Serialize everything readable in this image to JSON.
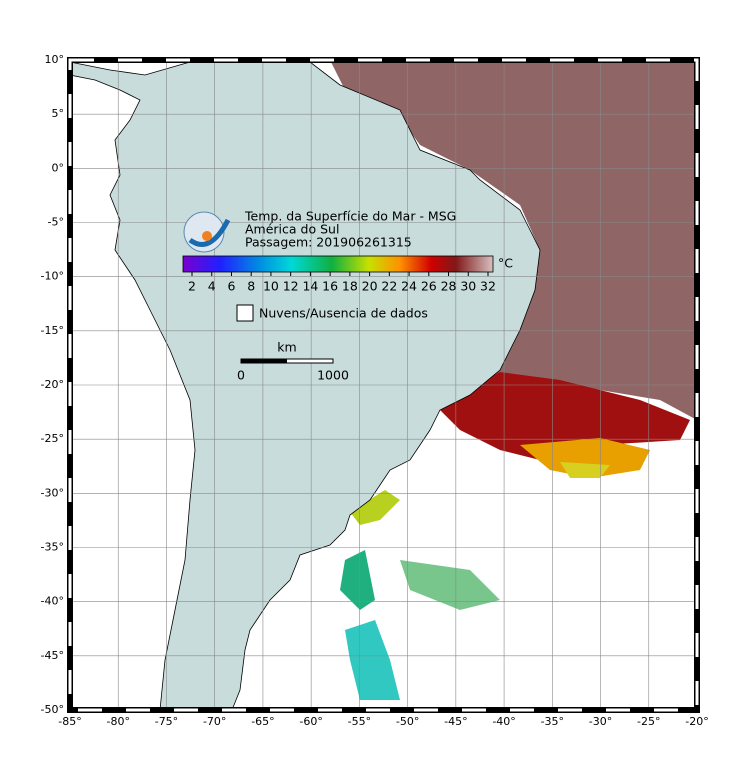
{
  "map": {
    "xlim": [
      -85,
      -20
    ],
    "ylim": [
      -50,
      10
    ],
    "xticks": [
      {
        "value": -85,
        "label": "-85°"
      },
      {
        "value": -80,
        "label": "-80°"
      },
      {
        "value": -75,
        "label": "-75°"
      },
      {
        "value": -70,
        "label": "-70°"
      },
      {
        "value": -65,
        "label": "-65°"
      },
      {
        "value": -60,
        "label": "-60°"
      },
      {
        "value": -55,
        "label": "-55°"
      },
      {
        "value": -50,
        "label": "-50°"
      },
      {
        "value": -45,
        "label": "-45°"
      },
      {
        "value": -40,
        "label": "-40°"
      },
      {
        "value": -35,
        "label": "-35°"
      },
      {
        "value": -30,
        "label": "-30°"
      },
      {
        "value": -25,
        "label": "-25°"
      },
      {
        "value": -20,
        "label": "-20°"
      }
    ],
    "yticks": [
      {
        "value": 10,
        "label": "10°"
      },
      {
        "value": 5,
        "label": "5°"
      },
      {
        "value": 0,
        "label": "0°"
      },
      {
        "value": -5,
        "label": "-5°"
      },
      {
        "value": -10,
        "label": "-10°"
      },
      {
        "value": -15,
        "label": "-15°"
      },
      {
        "value": -20,
        "label": "-20°"
      },
      {
        "value": -25,
        "label": "-25°"
      },
      {
        "value": -30,
        "label": "-30°"
      },
      {
        "value": -35,
        "label": "-35°"
      },
      {
        "value": -40,
        "label": "-40°"
      },
      {
        "value": -45,
        "label": "-45°"
      },
      {
        "value": -50,
        "label": "-50°"
      }
    ],
    "legend": {
      "title": "Temp. da Superfície do Mar - MSG",
      "region": "América do Sul",
      "pass": "Passagem: 201906261315",
      "colorbar": {
        "ticks": [
          2,
          4,
          6,
          8,
          10,
          12,
          14,
          16,
          18,
          20,
          22,
          24,
          26,
          28,
          30,
          32
        ],
        "unit": "°C"
      },
      "no_data": "Nuvens/Ausencia de dados",
      "scale": {
        "unit": "km",
        "labels": [
          0,
          1000
        ]
      }
    }
  }
}
